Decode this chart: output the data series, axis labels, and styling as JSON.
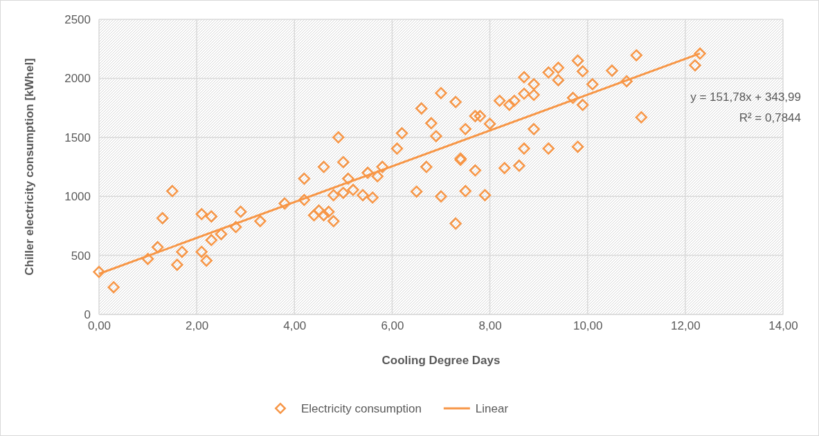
{
  "chart_data": {
    "type": "scatter",
    "xlabel": "Cooling Degree Days",
    "ylabel": "Chiller  electricity consumption [kWhel]",
    "xlim": [
      0,
      14
    ],
    "xticks": [
      {
        "value": 0,
        "label": "0,00"
      },
      {
        "value": 2,
        "label": "2,00"
      },
      {
        "value": 4,
        "label": "4,00"
      },
      {
        "value": 6,
        "label": "6,00"
      },
      {
        "value": 8,
        "label": "8,00"
      },
      {
        "value": 10,
        "label": "10,00"
      },
      {
        "value": 12,
        "label": "12,00"
      },
      {
        "value": 14,
        "label": "14,00"
      }
    ],
    "ylim": [
      0,
      2500
    ],
    "yticks": [
      0,
      500,
      1000,
      1500,
      2000,
      2500
    ],
    "grid": true,
    "legend": "bottom",
    "annotations": [
      "y = 151,78x + 343,99",
      "R² = 0,7844"
    ],
    "series": [
      {
        "name": "Electricity consumption",
        "marker": "diamond",
        "color": "#f79646",
        "x": [
          0,
          0.3,
          1.0,
          1.2,
          1.3,
          1.5,
          1.6,
          1.7,
          2.1,
          2.1,
          2.2,
          2.3,
          2.3,
          2.5,
          2.8,
          2.9,
          3.3,
          3.8,
          4.2,
          4.2,
          4.4,
          4.5,
          4.6,
          4.6,
          4.7,
          4.8,
          4.8,
          4.9,
          5.0,
          5.0,
          5.1,
          5.2,
          5.4,
          5.5,
          5.6,
          5.7,
          5.8,
          6.1,
          6.2,
          6.5,
          6.6,
          6.7,
          6.8,
          6.9,
          7.0,
          7.0,
          7.3,
          7.3,
          7.4,
          7.4,
          7.5,
          7.5,
          7.7,
          7.7,
          7.8,
          7.9,
          8.0,
          8.2,
          8.3,
          8.4,
          8.5,
          8.6,
          8.7,
          8.7,
          8.7,
          8.9,
          8.9,
          8.9,
          9.2,
          9.2,
          9.4,
          9.4,
          9.7,
          9.8,
          9.8,
          9.9,
          9.9,
          10.1,
          10.5,
          10.8,
          11.0,
          11.1,
          12.2,
          12.3
        ],
        "values": [
          360,
          230,
          470,
          570,
          815,
          1045,
          420,
          530,
          850,
          530,
          455,
          830,
          630,
          680,
          740,
          870,
          790,
          940,
          1150,
          970,
          840,
          880,
          1250,
          840,
          870,
          790,
          1010,
          1500,
          1290,
          1030,
          1150,
          1055,
          1010,
          1200,
          990,
          1170,
          1250,
          1405,
          1535,
          1040,
          1745,
          1250,
          1620,
          1510,
          1875,
          1000,
          1800,
          770,
          1320,
          1310,
          1570,
          1045,
          1680,
          1220,
          1680,
          1010,
          1615,
          1810,
          1240,
          1775,
          1810,
          1260,
          2010,
          1870,
          1405,
          1950,
          1860,
          1570,
          2050,
          1405,
          2090,
          1985,
          1835,
          2150,
          1420,
          2060,
          1775,
          1950,
          2065,
          1975,
          2195,
          1670,
          2110,
          2210
        ]
      },
      {
        "name": "Linear",
        "type": "line",
        "line_style": "solid",
        "color": "#f79646",
        "x": [
          0,
          12.3
        ],
        "values": [
          344,
          2211
        ]
      }
    ]
  }
}
